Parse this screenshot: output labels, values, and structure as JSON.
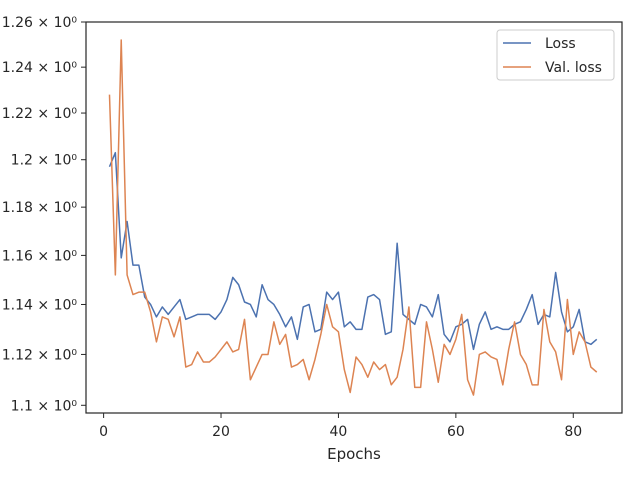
{
  "chart_data": {
    "type": "line",
    "title": "",
    "xlabel": "Epochs",
    "ylabel": "",
    "xlim": [
      -3,
      88.3
    ],
    "ylim": [
      1.097,
      1.26
    ],
    "yscale": "log",
    "grid": false,
    "legend_position": "top-right",
    "x_ticks": [
      0,
      20,
      40,
      60,
      80
    ],
    "x_tick_labels": [
      "0",
      "20",
      "40",
      "60",
      "80"
    ],
    "y_ticks": [
      1.1,
      1.12,
      1.14,
      1.16,
      1.18,
      1.2,
      1.22,
      1.24,
      1.26
    ],
    "y_tick_labels": [
      "1.1 × 10⁰",
      "1.12 × 10⁰",
      "1.14 × 10⁰",
      "1.16 × 10⁰",
      "1.18 × 10⁰",
      "1.2 × 10⁰",
      "1.22 × 10⁰",
      "1.24 × 10⁰",
      "1.26 × 10⁰"
    ],
    "x": [
      1,
      2,
      3,
      4,
      5,
      6,
      7,
      8,
      9,
      10,
      11,
      12,
      13,
      14,
      15,
      16,
      17,
      18,
      19,
      20,
      21,
      22,
      23,
      24,
      25,
      26,
      27,
      28,
      29,
      30,
      31,
      32,
      33,
      34,
      35,
      36,
      37,
      38,
      39,
      40,
      41,
      42,
      43,
      44,
      45,
      46,
      47,
      48,
      49,
      50,
      51,
      52,
      53,
      54,
      55,
      56,
      57,
      58,
      59,
      60,
      61,
      62,
      63,
      64,
      65,
      66,
      67,
      68,
      69,
      70,
      71,
      72,
      73,
      74,
      75,
      76,
      77,
      78,
      79,
      80,
      81,
      82,
      83,
      84
    ],
    "series": [
      {
        "name": "Loss",
        "color": "#4c72b0",
        "values": [
          1.197,
          1.203,
          1.159,
          1.174,
          1.156,
          1.156,
          1.143,
          1.14,
          1.135,
          1.139,
          1.136,
          1.139,
          1.142,
          1.134,
          1.135,
          1.136,
          1.136,
          1.136,
          1.134,
          1.137,
          1.142,
          1.151,
          1.148,
          1.141,
          1.14,
          1.135,
          1.148,
          1.142,
          1.14,
          1.136,
          1.131,
          1.135,
          1.126,
          1.139,
          1.14,
          1.129,
          1.13,
          1.145,
          1.142,
          1.145,
          1.131,
          1.133,
          1.13,
          1.13,
          1.143,
          1.144,
          1.142,
          1.128,
          1.129,
          1.165,
          1.136,
          1.134,
          1.132,
          1.14,
          1.139,
          1.135,
          1.144,
          1.128,
          1.125,
          1.131,
          1.132,
          1.134,
          1.122,
          1.132,
          1.137,
          1.13,
          1.131,
          1.13,
          1.13,
          1.132,
          1.133,
          1.138,
          1.144,
          1.132,
          1.136,
          1.135,
          1.153,
          1.137,
          1.129,
          1.131,
          1.138,
          1.125,
          1.124,
          1.126
        ]
      },
      {
        "name": "Val. loss",
        "color": "#dd8452",
        "values": [
          1.228,
          1.152,
          1.252,
          1.152,
          1.144,
          1.145,
          1.145,
          1.137,
          1.125,
          1.135,
          1.134,
          1.127,
          1.135,
          1.115,
          1.116,
          1.121,
          1.117,
          1.117,
          1.119,
          1.122,
          1.125,
          1.121,
          1.122,
          1.134,
          1.11,
          1.115,
          1.12,
          1.12,
          1.133,
          1.124,
          1.128,
          1.115,
          1.116,
          1.118,
          1.11,
          1.118,
          1.128,
          1.14,
          1.131,
          1.129,
          1.114,
          1.105,
          1.119,
          1.116,
          1.111,
          1.117,
          1.114,
          1.116,
          1.108,
          1.111,
          1.122,
          1.139,
          1.107,
          1.107,
          1.133,
          1.122,
          1.109,
          1.124,
          1.12,
          1.126,
          1.136,
          1.11,
          1.104,
          1.12,
          1.121,
          1.119,
          1.118,
          1.108,
          1.122,
          1.133,
          1.12,
          1.116,
          1.108,
          1.108,
          1.138,
          1.125,
          1.121,
          1.11,
          1.142,
          1.12,
          1.129,
          1.125,
          1.115,
          1.113
        ]
      }
    ]
  }
}
